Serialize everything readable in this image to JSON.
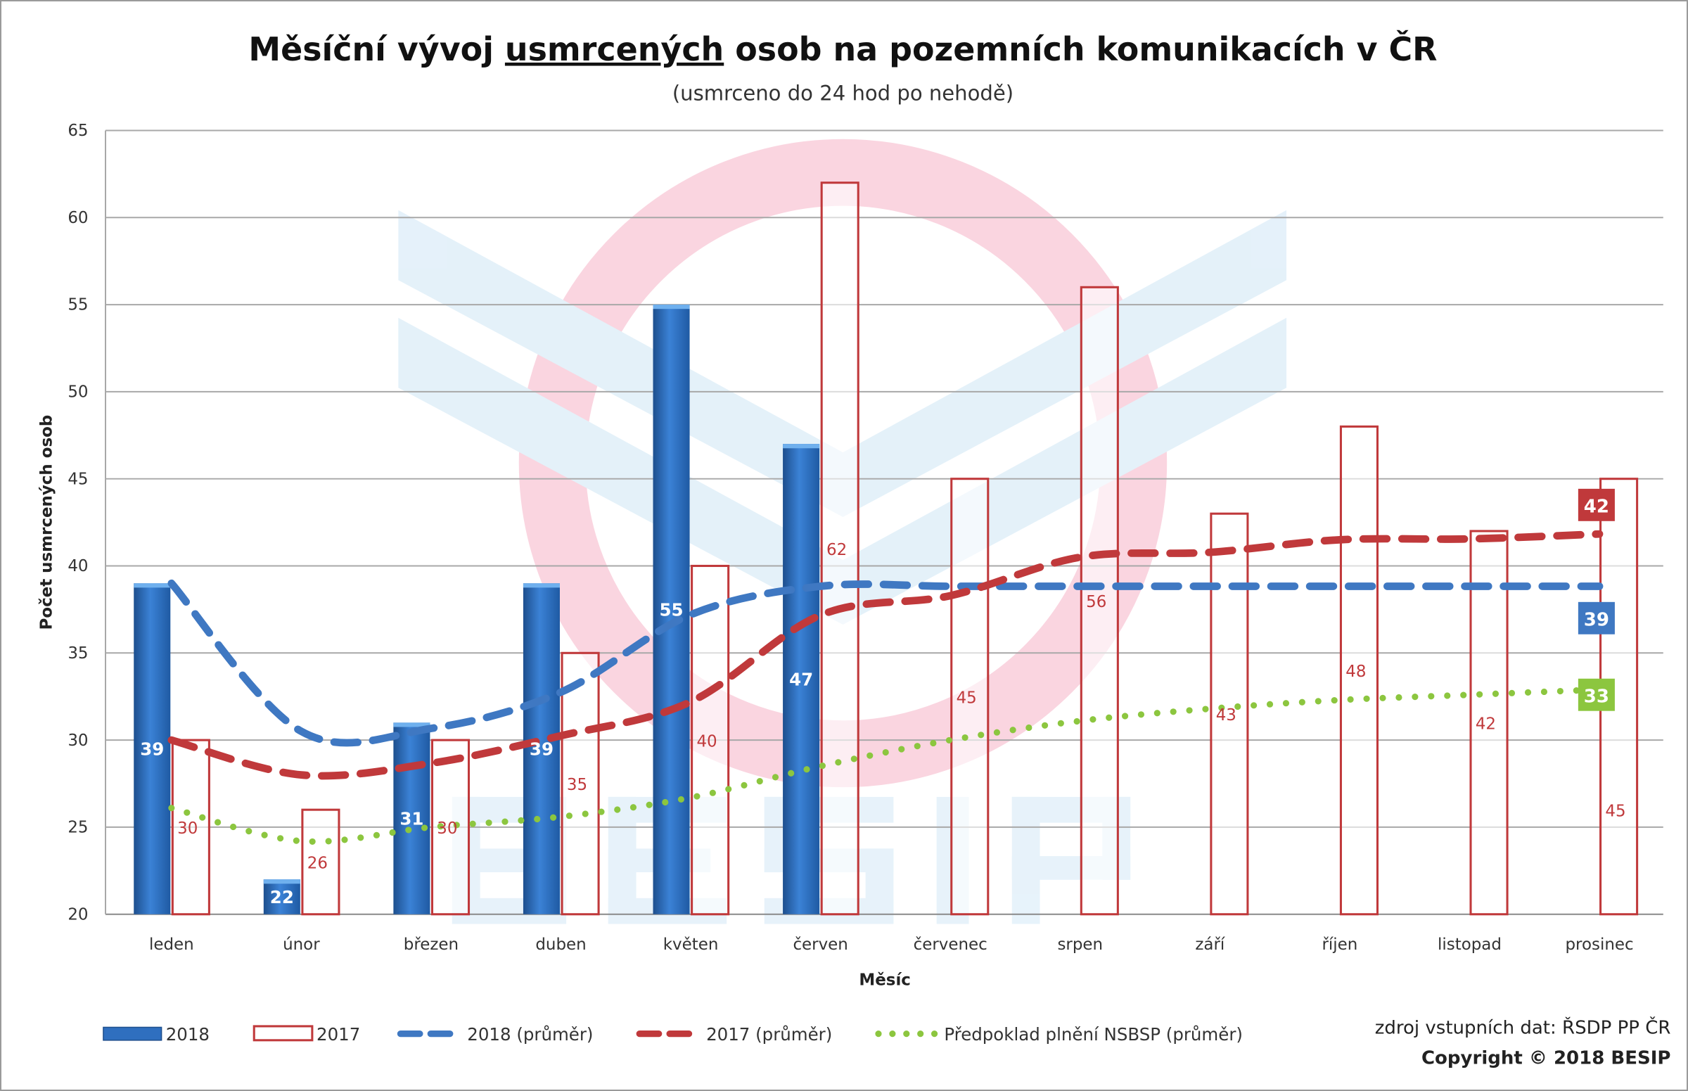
{
  "chart_data": {
    "type": "bar",
    "title": {
      "pre": "Měsíční vývoj ",
      "underlined": "usmrcených",
      "post": " osob na pozemních komunikacích v ČR"
    },
    "subtitle": "(usmrceno do 24 hod po nehodě)",
    "xlabel": "Měsíc",
    "ylabel": "Počet usmrcených osob",
    "ylim": [
      20,
      65
    ],
    "yticks": [
      20,
      25,
      30,
      35,
      40,
      45,
      50,
      55,
      60,
      65
    ],
    "grid": true,
    "legend_position": "bottom",
    "categories": [
      "leden",
      "únor",
      "březen",
      "duben",
      "květen",
      "červen",
      "červenec",
      "srpen",
      "září",
      "říjen",
      "listopad",
      "prosinec"
    ],
    "series": [
      {
        "name": "2018",
        "kind": "bar",
        "color": "#2f6fbf",
        "values": [
          39,
          22,
          31,
          39,
          55,
          47,
          null,
          null,
          null,
          null,
          null,
          null
        ]
      },
      {
        "name": "2017",
        "kind": "bar-outline",
        "color": "#c0393b",
        "values": [
          30,
          26,
          30,
          35,
          40,
          62,
          45,
          56,
          43,
          48,
          42,
          45
        ]
      },
      {
        "name": "2018 (průměr)",
        "kind": "dashed-line",
        "color": "#3f78c2",
        "values": [
          39,
          30.5,
          30.67,
          32.75,
          37.2,
          38.83,
          38.83,
          38.83,
          38.83,
          38.83,
          38.83,
          38.83
        ],
        "end_label": "39"
      },
      {
        "name": "2017 (průměr)",
        "kind": "dashed-line",
        "color": "#c0393b",
        "values": [
          30,
          28,
          28.67,
          30.25,
          32.2,
          37.17,
          38.29,
          40.5,
          40.78,
          41.5,
          41.55,
          41.83
        ],
        "end_label": "42"
      },
      {
        "name": "Předpoklad plnění NSBSP (průměr)",
        "kind": "dotted-line",
        "color": "#8cc63f",
        "values": [
          26.1,
          24.2,
          25,
          25.6,
          26.7,
          28.5,
          30,
          31.1,
          31.8,
          32.3,
          32.6,
          32.9
        ],
        "end_label": "33"
      }
    ],
    "source": "zdroj vstupních dat: ŘSDP PP ČR",
    "copyright": "Copyright © 2018 BESIP",
    "watermark": "BESIP"
  }
}
